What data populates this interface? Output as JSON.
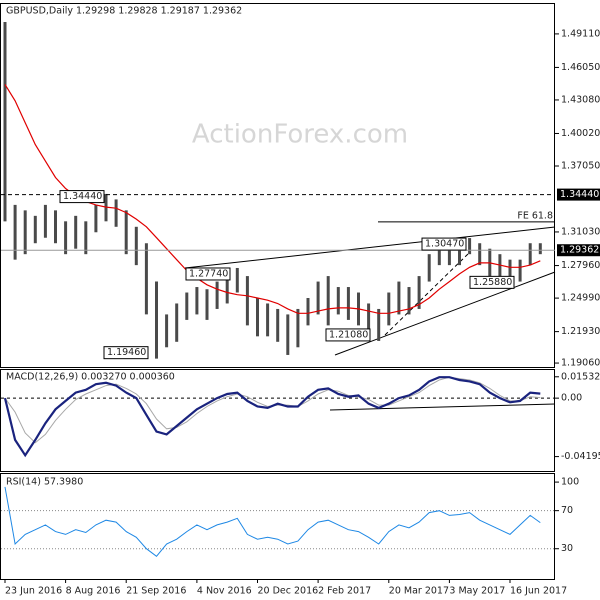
{
  "chart_data": [
    {
      "type": "range-bar",
      "title": "GBPUSD,Daily  1.29298 1.29828 1.29187 1.29362",
      "watermark": "ActionForex.com",
      "color": "#4a4a4a",
      "high": [
        1.502,
        1.335,
        1.33,
        1.325,
        1.335,
        1.33,
        1.32,
        1.325,
        1.32,
        1.335,
        1.345,
        1.34,
        1.33,
        1.315,
        1.3,
        1.265,
        1.235,
        1.245,
        1.255,
        1.26,
        1.258,
        1.265,
        1.272,
        1.2774,
        1.27,
        1.25,
        1.245,
        1.24,
        1.235,
        1.24,
        1.25,
        1.265,
        1.27,
        1.26,
        1.26,
        1.255,
        1.245,
        1.24,
        1.255,
        1.265,
        1.26,
        1.27,
        1.29,
        1.3,
        1.3,
        1.3,
        1.3047,
        1.3,
        1.295,
        1.29,
        1.285,
        1.285,
        1.3,
        1.3
      ],
      "low": [
        1.32,
        1.285,
        1.29,
        1.3,
        1.305,
        1.3,
        1.29,
        1.295,
        1.29,
        1.31,
        1.32,
        1.315,
        1.29,
        1.28,
        1.235,
        1.1946,
        1.205,
        1.21,
        1.23,
        1.235,
        1.23,
        1.24,
        1.245,
        1.255,
        1.225,
        1.215,
        1.215,
        1.21,
        1.198,
        1.205,
        1.225,
        1.235,
        1.225,
        1.235,
        1.23,
        1.225,
        1.215,
        1.2108,
        1.225,
        1.235,
        1.235,
        1.24,
        1.265,
        1.28,
        1.28,
        1.28,
        1.29,
        1.28,
        1.27,
        1.265,
        1.2588,
        1.265,
        1.28,
        1.29
      ],
      "ma": {
        "color": "#e00000",
        "values": [
          1.445,
          1.43,
          1.41,
          1.39,
          1.375,
          1.36,
          1.35,
          1.343,
          1.338,
          1.335,
          1.333,
          1.332,
          1.328,
          1.322,
          1.315,
          1.305,
          1.295,
          1.285,
          1.275,
          1.268,
          1.262,
          1.258,
          1.255,
          1.253,
          1.252,
          1.25,
          1.248,
          1.245,
          1.24,
          1.236,
          1.236,
          1.238,
          1.24,
          1.241,
          1.241,
          1.24,
          1.238,
          1.236,
          1.236,
          1.238,
          1.24,
          1.244,
          1.25,
          1.258,
          1.265,
          1.272,
          1.278,
          1.282,
          1.282,
          1.28,
          1.278,
          1.278,
          1.28,
          1.284
        ]
      },
      "ylim": [
        1.187,
        1.5184
      ],
      "yticks": [
        {
          "value": 1.4911,
          "label": "1.49110"
        },
        {
          "value": 1.4605,
          "label": "1.46050"
        },
        {
          "value": 1.4308,
          "label": "1.43080"
        },
        {
          "value": 1.4002,
          "label": "1.40020"
        },
        {
          "value": 1.3705,
          "label": "1.37050"
        },
        {
          "value": 1.3103,
          "label": "1.31030"
        },
        {
          "value": 1.2796,
          "label": "1.27960"
        },
        {
          "value": 1.2499,
          "label": "1.24990"
        },
        {
          "value": 1.2193,
          "label": "1.21930"
        },
        {
          "value": 1.1906,
          "label": "1.19060"
        }
      ],
      "levels": [
        {
          "value": 1.3444,
          "label": "1.34440"
        },
        {
          "value": 1.29362,
          "label": "1.29362"
        }
      ],
      "fe_level": {
        "value": 1.3195,
        "label": "FE 61.8"
      },
      "annotations": [
        {
          "value": 1.3444,
          "label": "1.34440"
        },
        {
          "value": 1.2774,
          "label": "1.27740"
        },
        {
          "value": 1.1946,
          "label": "1.19460"
        },
        {
          "value": 1.2108,
          "label": "1.21080"
        },
        {
          "value": 1.3047,
          "label": "1.30470"
        },
        {
          "value": 1.2588,
          "label": "1.25880"
        }
      ]
    },
    {
      "type": "line",
      "title": "MACD(12,26,9) 0.003270 0.000360",
      "series": [
        {
          "name": "MACD",
          "color": "#1a237e",
          "values": [
            0.0,
            -0.03,
            -0.041,
            -0.03,
            -0.018,
            -0.008,
            -0.002,
            0.004,
            0.006,
            0.01,
            0.011,
            0.009,
            0.004,
            0.0,
            -0.012,
            -0.024,
            -0.026,
            -0.02,
            -0.014,
            -0.008,
            -0.004,
            0.0,
            0.003,
            0.004,
            -0.002,
            -0.006,
            -0.007,
            -0.004,
            -0.006,
            -0.006,
            0.001,
            0.006,
            0.007,
            0.003,
            0.001,
            0.002,
            -0.004,
            -0.007,
            -0.004,
            0.0,
            0.002,
            0.006,
            0.012,
            0.015,
            0.015,
            0.013,
            0.012,
            0.01,
            0.004,
            0.0,
            -0.003,
            -0.002,
            0.004,
            0.00327
          ]
        },
        {
          "name": "Signal",
          "color": "#a8a8a8",
          "values": [
            0.0,
            -0.01,
            -0.025,
            -0.032,
            -0.026,
            -0.016,
            -0.008,
            -0.001,
            0.003,
            0.006,
            0.009,
            0.01,
            0.007,
            0.003,
            -0.004,
            -0.015,
            -0.022,
            -0.021,
            -0.017,
            -0.011,
            -0.006,
            -0.002,
            0.001,
            0.003,
            0.001,
            -0.003,
            -0.006,
            -0.005,
            -0.005,
            -0.006,
            -0.002,
            0.003,
            0.006,
            0.005,
            0.002,
            0.001,
            -0.001,
            -0.005,
            -0.005,
            -0.002,
            0.001,
            0.004,
            0.009,
            0.013,
            0.015,
            0.014,
            0.013,
            0.011,
            0.007,
            0.002,
            -0.002,
            -0.002,
            0.001,
            0.00036
          ]
        }
      ],
      "ylim": [
        -0.0523,
        0.0202
      ],
      "yticks": [
        {
          "value": 0.015325,
          "label": "0.015325"
        },
        {
          "value": 0,
          "label": "0.00"
        },
        {
          "value": -0.041957,
          "label": "-0.041957"
        }
      ]
    },
    {
      "type": "line",
      "title": "RSI(14) 57.3980",
      "series": [
        {
          "name": "RSI",
          "color": "#1e88e5",
          "values": [
            95,
            35,
            45,
            50,
            55,
            48,
            45,
            50,
            47,
            55,
            60,
            58,
            48,
            42,
            30,
            22,
            35,
            40,
            48,
            55,
            50,
            55,
            58,
            62,
            45,
            40,
            42,
            40,
            35,
            38,
            50,
            58,
            60,
            55,
            50,
            48,
            42,
            35,
            48,
            55,
            52,
            58,
            68,
            70,
            65,
            66,
            68,
            60,
            55,
            50,
            45,
            55,
            65,
            57.398
          ]
        }
      ],
      "ylim": [
        -1.8,
        108.5
      ],
      "yticks": [
        100,
        70,
        30
      ],
      "categories": [
        "23 Jun 2016",
        null,
        null,
        null,
        null,
        null,
        "8 Aug 2016",
        null,
        null,
        null,
        null,
        null,
        "21 Sep 2016",
        null,
        null,
        null,
        null,
        null,
        null,
        "4 Nov 2016",
        null,
        null,
        null,
        null,
        null,
        "20 Dec 2016",
        null,
        null,
        null,
        null,
        null,
        "2 Feb 2017",
        null,
        null,
        null,
        null,
        null,
        null,
        "20 Mar 2017",
        null,
        null,
        null,
        null,
        null,
        "3 May 2017",
        null,
        null,
        null,
        null,
        null,
        "16 Jun 2017",
        null,
        null,
        null
      ]
    }
  ]
}
